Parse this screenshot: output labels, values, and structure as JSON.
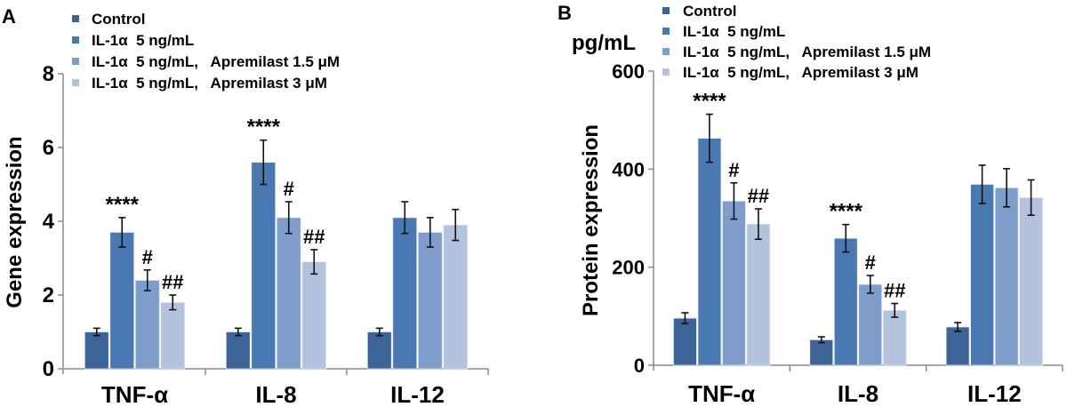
{
  "chart_data": [
    {
      "type": "bar",
      "panel_label": "A",
      "title": "",
      "xlabel": "",
      "ylabel": "Gene expression",
      "unit_label": "",
      "ylim": [
        0,
        8
      ],
      "yticks": [
        "0",
        "2",
        "4",
        "6",
        "8"
      ],
      "ytick_values": [
        0,
        2,
        4,
        6,
        8
      ],
      "grid": false,
      "legend_position": "top-left",
      "categories": [
        "TNF-α",
        "IL-8",
        "IL-12"
      ],
      "series": [
        {
          "name": "Control",
          "color": "#3d6497",
          "values": [
            1.0,
            1.0,
            1.0
          ],
          "errors": [
            0.1,
            0.1,
            0.1
          ],
          "annotations": [
            "",
            "",
            ""
          ]
        },
        {
          "name": "IL-1α  5 ng/mL",
          "color": "#4a78b0",
          "values": [
            3.7,
            5.6,
            4.1
          ],
          "errors": [
            0.4,
            0.6,
            0.43
          ],
          "annotations": [
            "****",
            "****",
            ""
          ]
        },
        {
          "name": "IL-1α  5 ng/mL,   Apremilast 1.5 μM",
          "color": "#7f9dcb",
          "values": [
            2.4,
            4.1,
            3.7
          ],
          "errors": [
            0.28,
            0.43,
            0.4
          ],
          "annotations": [
            "#",
            "#",
            ""
          ]
        },
        {
          "name": "IL-1α  5 ng/mL,   Apremilast 3 μM",
          "color": "#b3c3de",
          "values": [
            1.8,
            2.9,
            3.9
          ],
          "errors": [
            0.2,
            0.33,
            0.42
          ],
          "annotations": [
            "##",
            "##",
            ""
          ]
        }
      ]
    },
    {
      "type": "bar",
      "panel_label": "B",
      "title": "",
      "xlabel": "",
      "ylabel": "Protein expression",
      "unit_label": "pg/mL",
      "ylim": [
        0,
        600
      ],
      "yticks": [
        "0",
        "200",
        "400",
        "600"
      ],
      "ytick_values": [
        0,
        200,
        400,
        600
      ],
      "grid": false,
      "legend_position": "top-left",
      "categories": [
        "TNF-α",
        "IL-8",
        "IL-12"
      ],
      "series": [
        {
          "name": "Control",
          "color": "#3d6497",
          "values": [
            96,
            52,
            78
          ],
          "errors": [
            11,
            6,
            9
          ],
          "annotations": [
            "",
            "",
            ""
          ]
        },
        {
          "name": "IL-1α  5 ng/mL",
          "color": "#4a78b0",
          "values": [
            463,
            259,
            369
          ],
          "errors": [
            49,
            28,
            39
          ],
          "annotations": [
            "****",
            "****",
            ""
          ]
        },
        {
          "name": "IL-1α  5 ng/mL,   Apremilast 1.5 μM",
          "color": "#7f9dcb",
          "values": [
            335,
            165,
            362
          ],
          "errors": [
            37,
            18,
            39
          ],
          "annotations": [
            "#",
            "#",
            ""
          ]
        },
        {
          "name": "IL-1α  5 ng/mL,   Apremilast 3 μM",
          "color": "#b3c3de",
          "values": [
            288,
            112,
            342
          ],
          "errors": [
            31,
            14,
            36
          ],
          "annotations": [
            "##",
            "##",
            ""
          ]
        }
      ]
    }
  ]
}
